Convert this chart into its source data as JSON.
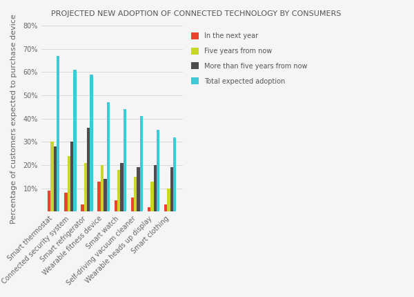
{
  "title": "PROJECTED NEW ADOPTION OF CONNECTED TECHNOLOGY BY CONSUMERS",
  "categories": [
    "Smart thermostat",
    "Connected security system",
    "Smart refrigerator",
    "Wearable fitness device",
    "Smart watch",
    "Self-driving vacuum cleaner",
    "Wearable heads up display",
    "Smart clothing"
  ],
  "series": [
    {
      "name": "In the next year",
      "color": "#e8452c",
      "values": [
        9,
        8,
        3,
        13,
        5,
        6,
        2,
        3
      ]
    },
    {
      "name": "Five years from now",
      "color": "#c8d629",
      "values": [
        30,
        24,
        21,
        20,
        18,
        15,
        13,
        10
      ]
    },
    {
      "name": "More than five years from now",
      "color": "#4d4d4d",
      "values": [
        28,
        30,
        36,
        14,
        21,
        19,
        20,
        19
      ]
    },
    {
      "name": "Total expected adoption",
      "color": "#40c8d6",
      "values": [
        67,
        61,
        59,
        47,
        44,
        41,
        35,
        32
      ]
    }
  ],
  "ylabel": "Percentage of customers expected to purchase device",
  "ylim": [
    0,
    80
  ],
  "yticks": [
    0,
    10,
    20,
    30,
    40,
    50,
    60,
    70,
    80
  ],
  "ytick_labels": [
    "",
    "10%",
    "20%",
    "30%",
    "40%",
    "50%",
    "60%",
    "70%",
    "80%"
  ],
  "background_color": "#f5f5f5",
  "title_fontsize": 8,
  "ylabel_fontsize": 8
}
